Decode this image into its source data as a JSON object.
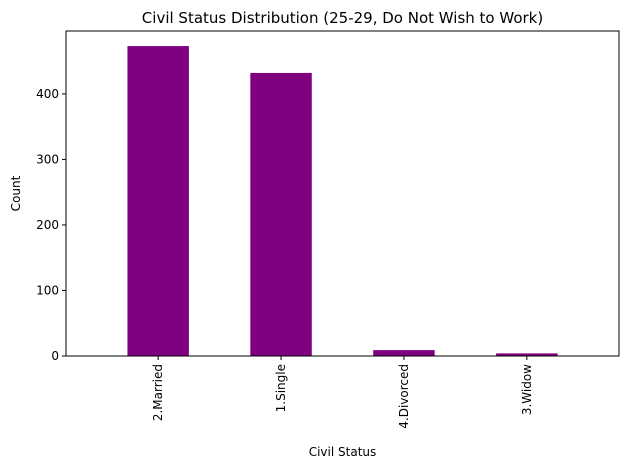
{
  "chart_data": {
    "type": "bar",
    "title": "Civil Status Distribution (25-29, Do Not Wish to Work)",
    "xlabel": "Civil Status",
    "ylabel": "Count",
    "categories": [
      "2.Married",
      "1.Single",
      "4.Divorced",
      "3.Widow"
    ],
    "values": [
      473,
      432,
      9,
      4
    ],
    "ylim": [
      0,
      496
    ],
    "yticks": [
      0,
      100,
      200,
      300,
      400
    ],
    "grid": false,
    "legend": "none",
    "bar_color": "#800080",
    "x_tick_rotation": "vertical"
  }
}
